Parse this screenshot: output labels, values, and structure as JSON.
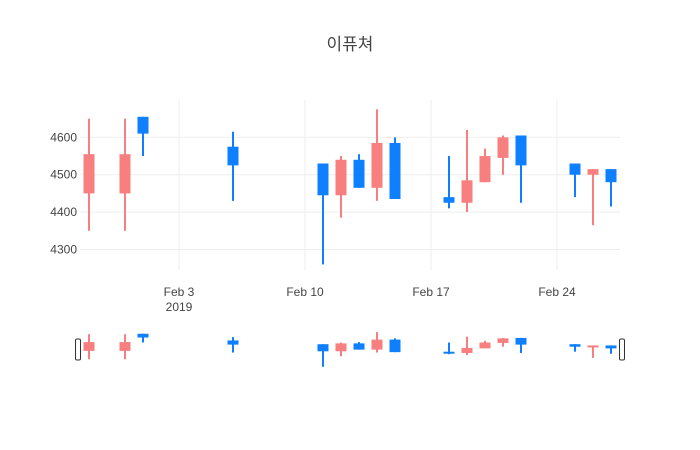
{
  "chart_data": {
    "type": "candlestick",
    "title": "이퓨쳐",
    "xlabel": "",
    "ylabel": "",
    "x_ticks": [
      {
        "date": "2019-02-03",
        "label": "Feb 3",
        "sublabel": "2019"
      },
      {
        "date": "2019-02-10",
        "label": "Feb 10",
        "sublabel": ""
      },
      {
        "date": "2019-02-17",
        "label": "Feb 17",
        "sublabel": ""
      },
      {
        "date": "2019-02-24",
        "label": "Feb 24",
        "sublabel": ""
      }
    ],
    "y_ticks": [
      4300,
      4400,
      4500,
      4600
    ],
    "xlim": [
      "2019-01-29",
      "2019-02-27"
    ],
    "ylim": [
      4245,
      4700
    ],
    "grid": true,
    "range_slider": true,
    "increasing_color": "#f87f7f",
    "decreasing_color": "#0e7fff",
    "candles": [
      {
        "date": "2019-01-29",
        "open": 4450,
        "high": 4650,
        "low": 4350,
        "close": 4555
      },
      {
        "date": "2019-01-31",
        "open": 4450,
        "high": 4650,
        "low": 4350,
        "close": 4555
      },
      {
        "date": "2019-02-01",
        "open": 4655,
        "high": 4655,
        "low": 4550,
        "close": 4610
      },
      {
        "date": "2019-02-06",
        "open": 4575,
        "high": 4615,
        "low": 4430,
        "close": 4525
      },
      {
        "date": "2019-02-11",
        "open": 4530,
        "high": 4530,
        "low": 4260,
        "close": 4445
      },
      {
        "date": "2019-02-12",
        "open": 4445,
        "high": 4550,
        "low": 4385,
        "close": 4540
      },
      {
        "date": "2019-02-13",
        "open": 4540,
        "high": 4555,
        "low": 4465,
        "close": 4465
      },
      {
        "date": "2019-02-14",
        "open": 4465,
        "high": 4675,
        "low": 4430,
        "close": 4585
      },
      {
        "date": "2019-02-15",
        "open": 4585,
        "high": 4600,
        "low": 4435,
        "close": 4435
      },
      {
        "date": "2019-02-18",
        "open": 4440,
        "high": 4550,
        "low": 4410,
        "close": 4425
      },
      {
        "date": "2019-02-19",
        "open": 4425,
        "high": 4620,
        "low": 4400,
        "close": 4485
      },
      {
        "date": "2019-02-20",
        "open": 4480,
        "high": 4570,
        "low": 4480,
        "close": 4550
      },
      {
        "date": "2019-02-21",
        "open": 4545,
        "high": 4605,
        "low": 4500,
        "close": 4600
      },
      {
        "date": "2019-02-22",
        "open": 4605,
        "high": 4605,
        "low": 4425,
        "close": 4525
      },
      {
        "date": "2019-02-25",
        "open": 4530,
        "high": 4530,
        "low": 4440,
        "close": 4500
      },
      {
        "date": "2019-02-26",
        "open": 4500,
        "high": 4515,
        "low": 4365,
        "close": 4515
      },
      {
        "date": "2019-02-27",
        "open": 4515,
        "high": 4515,
        "low": 4415,
        "close": 4480
      }
    ]
  }
}
